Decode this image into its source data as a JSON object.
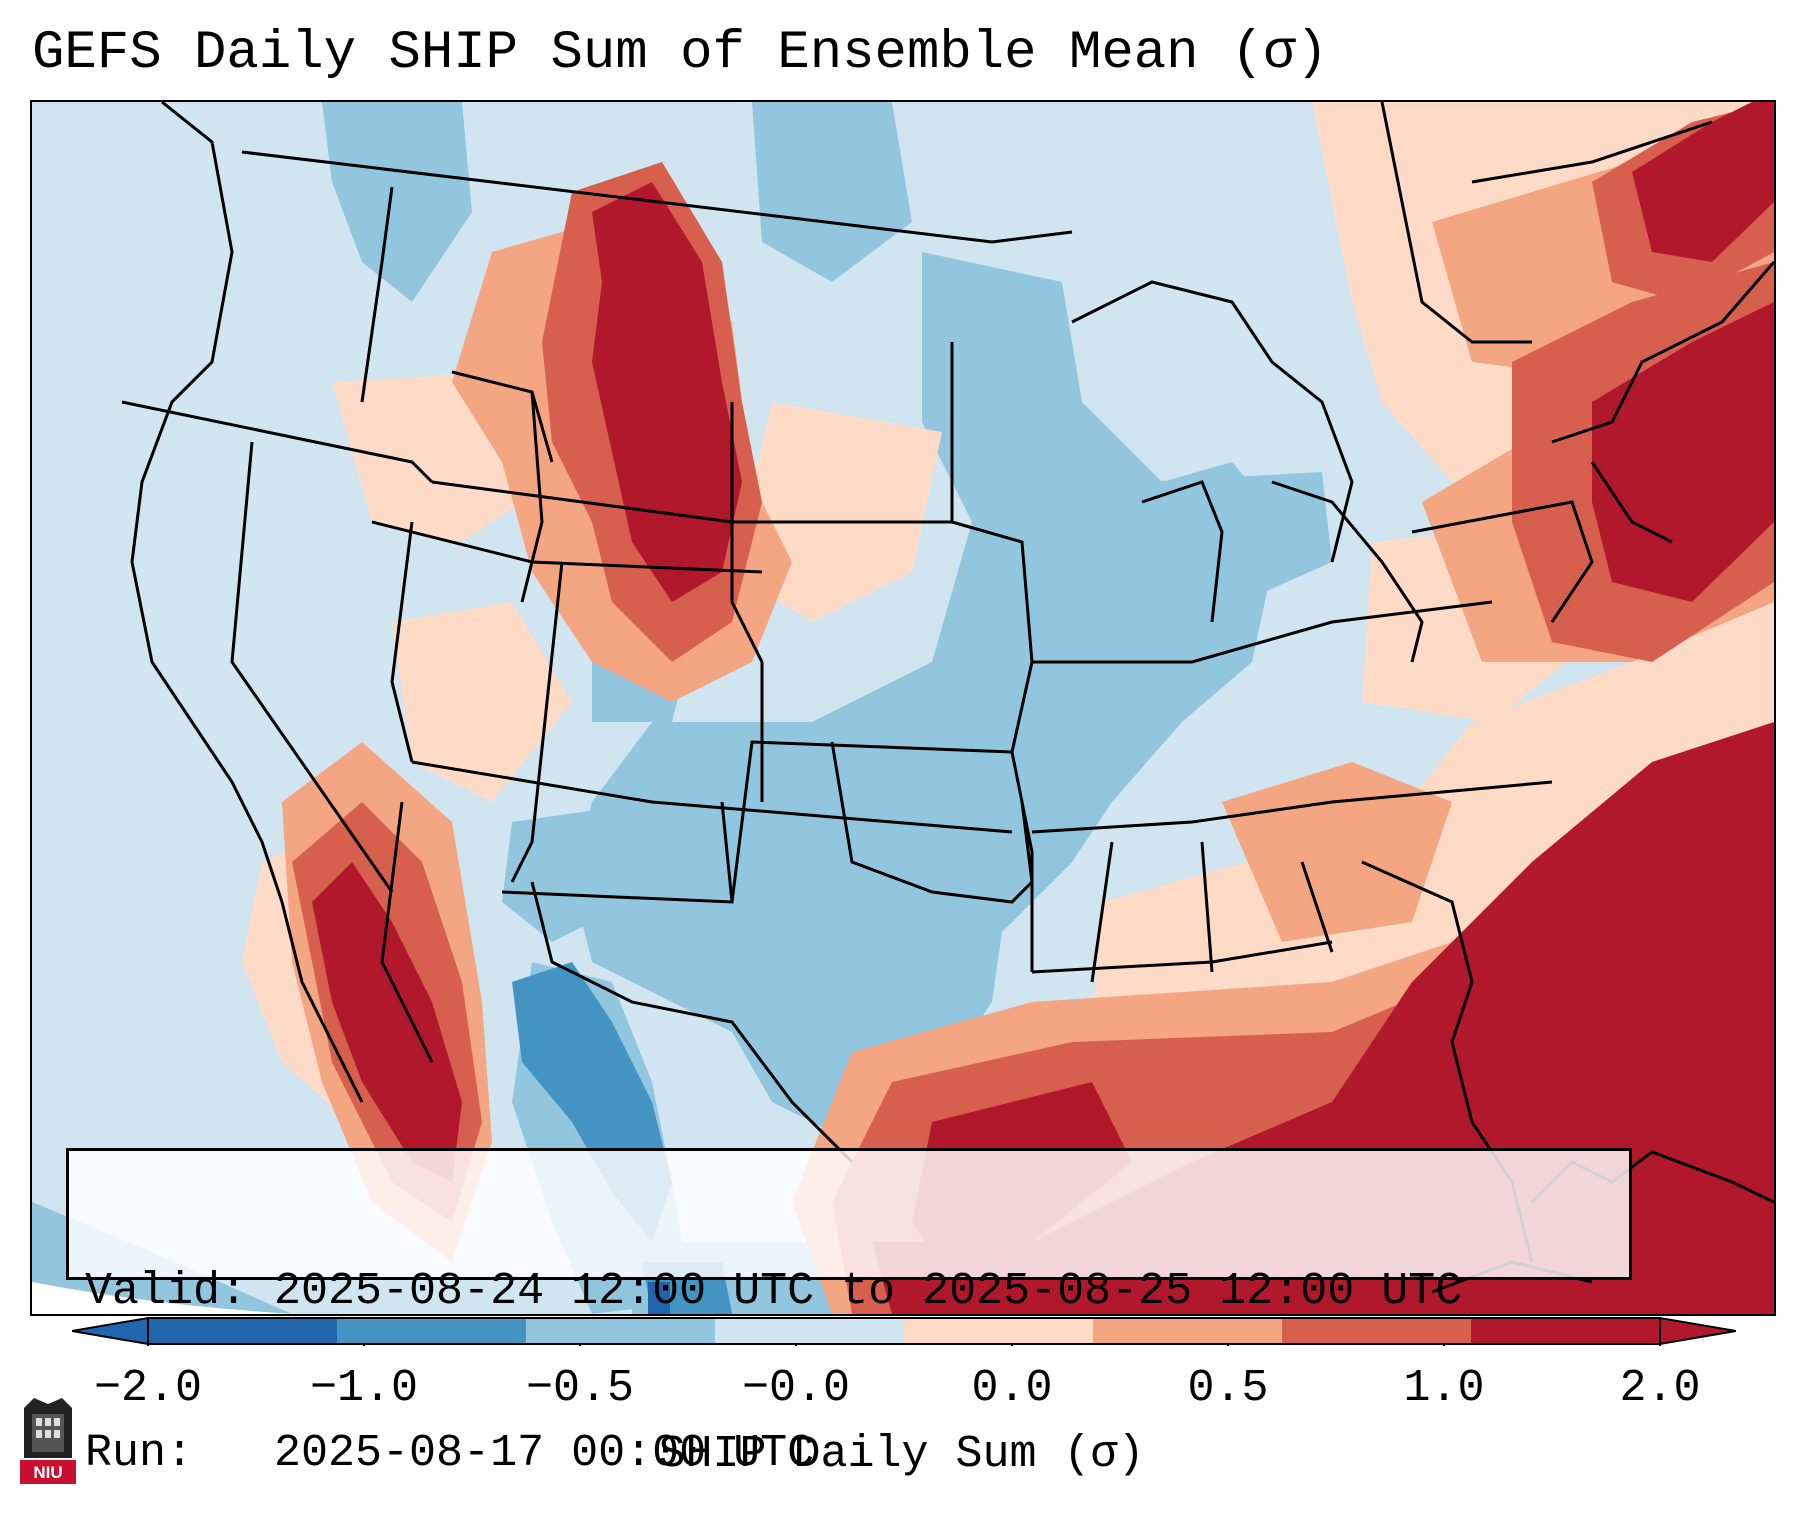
{
  "title": "GEFS Daily SHIP Sum of Ensemble Mean (σ)",
  "info": {
    "valid_line": "Valid: 2025-08-24 12:00 UTC to 2025-08-25 12:00 UTC",
    "run_line": "Run:   2025-08-17 00:00 UTC"
  },
  "colorbar": {
    "label": "SHIP Daily Sum (σ)",
    "tick_labels": [
      "−2.0",
      "−1.0",
      "−0.5",
      "−0.0",
      "0.0",
      "0.5",
      "1.0",
      "2.0"
    ],
    "colors": [
      "#2166ac",
      "#4393c3",
      "#92c5de",
      "#d1e5f0",
      "#fddbc7",
      "#f4a582",
      "#d6604d",
      "#b2182b"
    ]
  },
  "logo": {
    "text": "NIU",
    "color": "#c8102e"
  },
  "map": {
    "icon": "conus-map-icon",
    "ocean_color": "#d1e5f0",
    "border_color": "#000000"
  }
}
